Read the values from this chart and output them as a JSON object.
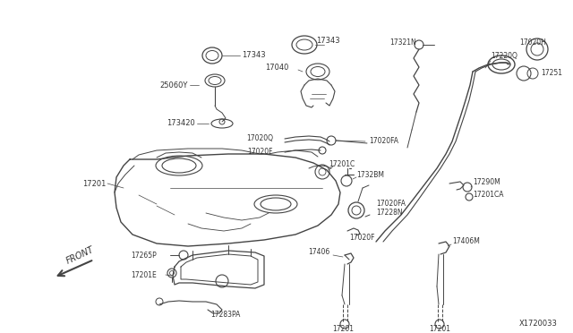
{
  "bg_color": "#ffffff",
  "line_color": "#444444",
  "text_color": "#333333",
  "diagram_id": "X1720033",
  "figsize": [
    6.4,
    3.72
  ],
  "dpi": 100,
  "xlim": [
    0,
    640
  ],
  "ylim": [
    0,
    372
  ]
}
